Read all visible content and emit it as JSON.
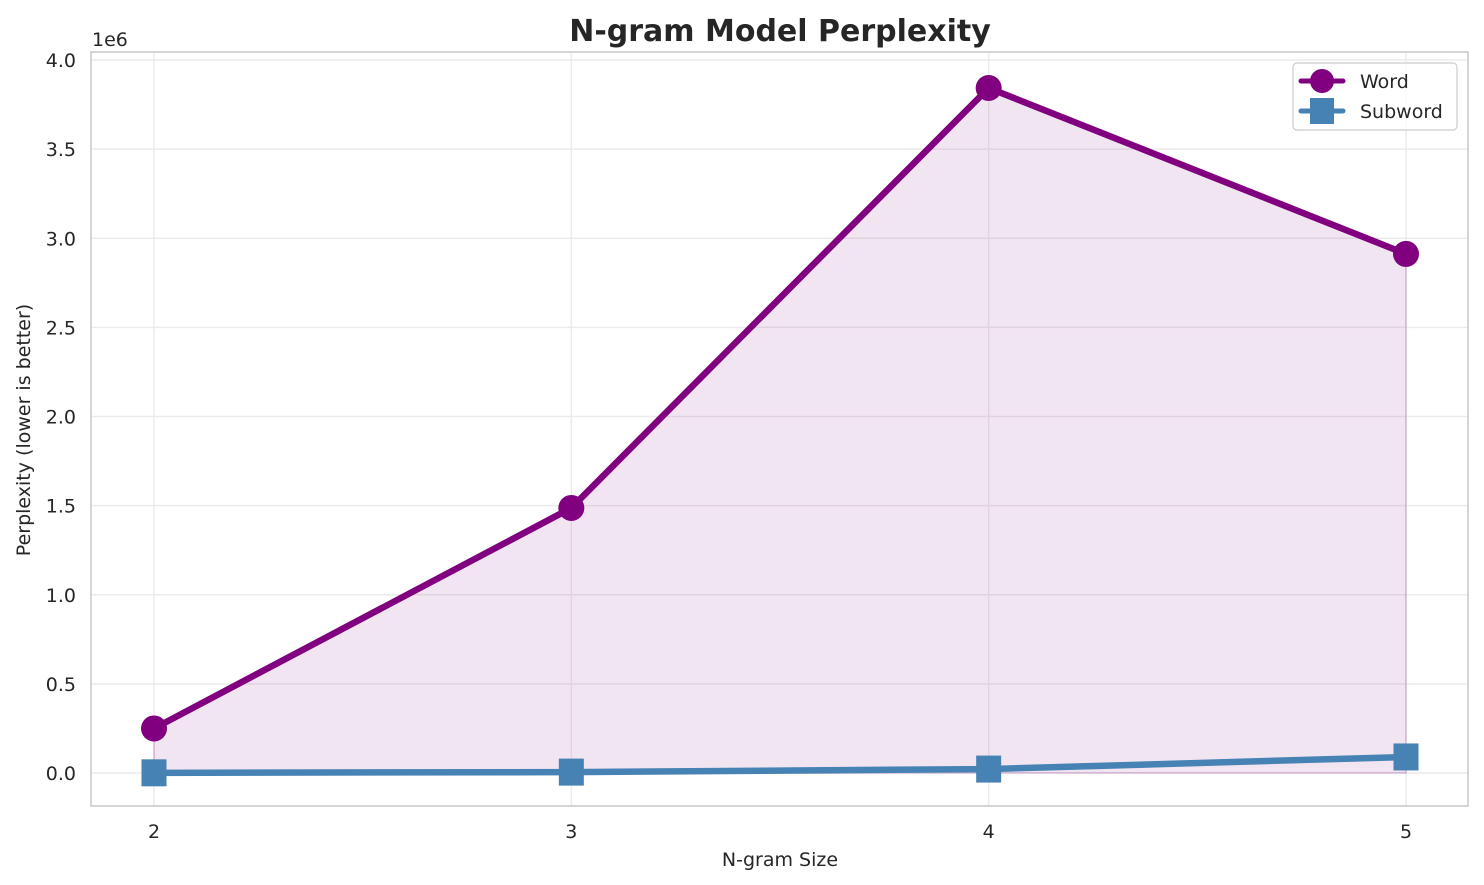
{
  "chart_data": {
    "type": "line",
    "title": "N-gram Model Perplexity",
    "xlabel": "N-gram Size",
    "ylabel": "Perplexity (lower is better)",
    "y_offset_label": "1e6",
    "x": [
      2,
      3,
      4,
      5
    ],
    "x_tick_labels": [
      "2",
      "3",
      "4",
      "5"
    ],
    "y_ticks": [
      0.0,
      0.5,
      1.0,
      1.5,
      2.0,
      2.5,
      3.0,
      3.5,
      4.0
    ],
    "y_tick_labels": [
      "0.0",
      "0.5",
      "1.0",
      "1.5",
      "2.0",
      "2.5",
      "3.0",
      "3.5",
      "4.0"
    ],
    "xlim": [
      1.85,
      5.15
    ],
    "ylim": [
      -0.19,
      4.05
    ],
    "grid": true,
    "legend_position": "upper right",
    "series": [
      {
        "name": "Word",
        "values": [
          250000,
          1487000,
          3843000,
          2912000
        ],
        "color": "#800080",
        "marker": "circle",
        "fill_between": true,
        "fill_color": "#800080",
        "fill_alpha": 0.1
      },
      {
        "name": "Subword",
        "values": [
          1000,
          5000,
          22000,
          90000
        ],
        "color": "#4682b4",
        "marker": "square"
      }
    ]
  },
  "legend": {
    "items": [
      {
        "label": "Word"
      },
      {
        "label": "Subword"
      }
    ]
  }
}
